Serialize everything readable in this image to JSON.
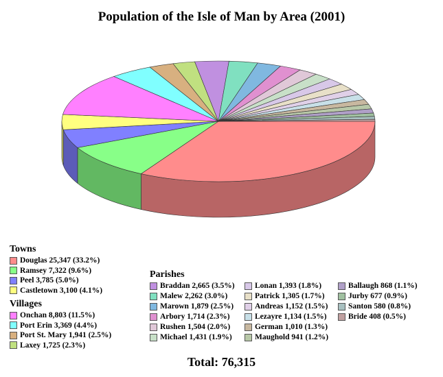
{
  "chart_data": {
    "type": "pie",
    "title": "Population of the Isle of Man by Area (2001)",
    "total_label": "Total: 76,315",
    "slices": [
      {
        "label": "Douglas 25,347 (33.2%)",
        "value": 25347,
        "color": "#ff8c8c"
      },
      {
        "label": "Ramsey 7,322 (9.6%)",
        "value": 7322,
        "color": "#88ff88"
      },
      {
        "label": "Peel 3,785 (5.0%)",
        "value": 3785,
        "color": "#8080ff"
      },
      {
        "label": "Castletown 3,100 (4.1%)",
        "value": 3100,
        "color": "#ffff80"
      },
      {
        "label": "Onchan 8,803 (11.5%)",
        "value": 8803,
        "color": "#ff80ff"
      },
      {
        "label": "Port Erin 3,369 (4.4%)",
        "value": 3369,
        "color": "#80ffff"
      },
      {
        "label": "Port St. Mary 1,941 (2.5%)",
        "value": 1941,
        "color": "#d8b080"
      },
      {
        "label": "Laxey 1,725 (2.3%)",
        "value": 1725,
        "color": "#c0e080"
      },
      {
        "label": "Braddan 2,665 (3.5%)",
        "value": 2665,
        "color": "#c090e0"
      },
      {
        "label": "Malew 2,262 (3.0%)",
        "value": 2262,
        "color": "#80e0c0"
      },
      {
        "label": "Marown 1,879 (2.5%)",
        "value": 1879,
        "color": "#80b8e0"
      },
      {
        "label": "Arbory 1,714 (2.3%)",
        "value": 1714,
        "color": "#e090d0"
      },
      {
        "label": "Rushen 1,504 (2.0%)",
        "value": 1504,
        "color": "#e0c8d8"
      },
      {
        "label": "Michael 1,431 (1.9%)",
        "value": 1431,
        "color": "#c8e0c8"
      },
      {
        "label": "Lonan 1,393 (1.8%)",
        "value": 1393,
        "color": "#d8c8e8"
      },
      {
        "label": "Patrick 1,305 (1.7%)",
        "value": 1305,
        "color": "#e8e0c8"
      },
      {
        "label": "Andreas 1,152 (1.5%)",
        "value": 1152,
        "color": "#e0d0e8"
      },
      {
        "label": "Lezayre 1,134 (1.5%)",
        "value": 1134,
        "color": "#c8e0e8"
      },
      {
        "label": "German 1,010 (1.3%)",
        "value": 1010,
        "color": "#c8b8a0"
      },
      {
        "label": "Maughold 941 (1.2%)",
        "value": 941,
        "color": "#b8c8a8"
      },
      {
        "label": "Ballaugh 868 (1.1%)",
        "value": 868,
        "color": "#b0a0c8"
      },
      {
        "label": "Jurby 677 (0.9%)",
        "value": 677,
        "color": "#a0c0a0"
      },
      {
        "label": "Santon 580 (0.8%)",
        "value": 580,
        "color": "#a8c0c0"
      },
      {
        "label": "Bride 408 (0.5%)",
        "value": 408,
        "color": "#c0a0a0"
      }
    ],
    "legend": {
      "towns": {
        "heading": "Towns",
        "indices": [
          0,
          1,
          2,
          3
        ]
      },
      "villages": {
        "heading": "Villages",
        "indices": [
          4,
          5,
          6,
          7
        ]
      },
      "parishes": {
        "heading": "Parishes",
        "indices": [
          8,
          9,
          10,
          11,
          12,
          13,
          14,
          15,
          16,
          17,
          18,
          19,
          20,
          21,
          22,
          23
        ]
      }
    }
  }
}
